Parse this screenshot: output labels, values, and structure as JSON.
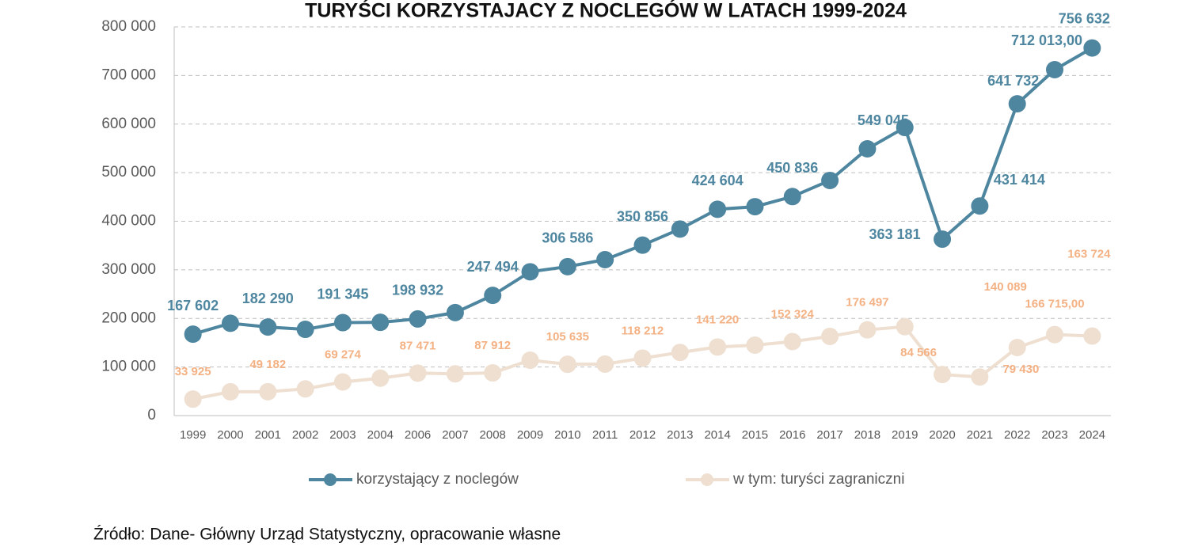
{
  "chart_data": {
    "type": "line",
    "title": "TURYŚCI KORZYSTAJACY Z NOCLEGÓW W LATACH 1999-2024",
    "categories": [
      "1999",
      "2000",
      "2001",
      "2002",
      "2003",
      "2004",
      "2006",
      "2007",
      "2008",
      "2009",
      "2010",
      "2011",
      "2012",
      "2013",
      "2014",
      "2015",
      "2016",
      "2017",
      "2018",
      "2019",
      "2020",
      "2021",
      "2022",
      "2023",
      "2024"
    ],
    "series": [
      {
        "name": "korzystający z noclegów",
        "color": "#4e86a0",
        "values": [
          167602,
          190000,
          182290,
          177500,
          191345,
          192000,
          198932,
          212000,
          247494,
          296000,
          306586,
          321000,
          350856,
          384000,
          424604,
          430000,
          450836,
          484000,
          549045,
          593000,
          363181,
          431414,
          641732,
          712013,
          756632
        ],
        "value_labels": [
          "167 602",
          null,
          "182 290",
          null,
          "191 345",
          null,
          "198 932",
          null,
          "247 494",
          null,
          "306 586",
          null,
          "350 856",
          null,
          "424 604",
          null,
          "450 836",
          null,
          "549 045",
          null,
          "363 181",
          "431 414",
          "641 732",
          "712 013,00",
          "756 632"
        ]
      },
      {
        "name": "w tym: turyści zagraniczni",
        "color": "#eedfd0",
        "values": [
          33925,
          49000,
          49182,
          55000,
          69274,
          77000,
          87471,
          86000,
          87912,
          114000,
          105635,
          106000,
          118212,
          130000,
          141220,
          145000,
          152324,
          163000,
          176497,
          183000,
          84566,
          79430,
          140089,
          166715,
          163724
        ],
        "value_labels": [
          "33 925",
          null,
          "49 182",
          null,
          "69 274",
          null,
          "87 471",
          null,
          "87 912",
          null,
          "105 635",
          null,
          "118 212",
          null,
          "141 220",
          null,
          "152 324",
          null,
          "176 497",
          null,
          "84 566",
          "79 430",
          "140 089",
          "166 715,00",
          "163 724"
        ]
      }
    ],
    "ylim": [
      0,
      800000
    ],
    "yticks": [
      0,
      {
        "value": 100000,
        "label": "100 000"
      },
      {
        "value": 200000,
        "label": "200 000"
      },
      {
        "value": 300000,
        "label": "300 000"
      },
      {
        "value": 400000,
        "label": "400 000"
      },
      {
        "value": 500000,
        "label": "500 000"
      },
      {
        "value": 600000,
        "label": "600 000"
      },
      {
        "value": 700000,
        "label": "700 000"
      },
      {
        "value": 800000,
        "label": "800 000"
      }
    ],
    "grid": true,
    "source": "Źródło: Dane- Główny Urząd Statystyczny, opracowanie własne"
  }
}
